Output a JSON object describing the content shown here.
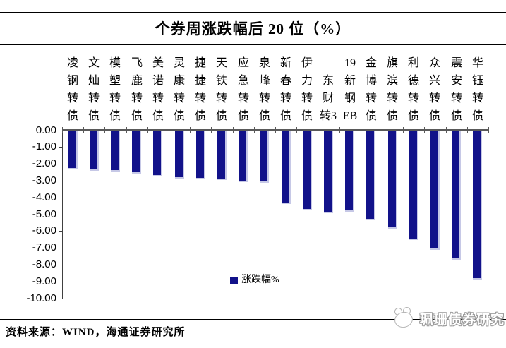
{
  "title": "个券周涨跌幅后 20 位（%）",
  "chart_data": {
    "type": "bar",
    "title": "个券周涨跌幅后 20 位（%）",
    "series_name": "涨跌幅%",
    "categories": [
      "凌钢转债",
      "文灿转债",
      "模塑转债",
      "飞鹿转债",
      "美诺转债",
      "灵康转债",
      "捷捷转债",
      "天铁转债",
      "应急转债",
      "泉峰转债",
      "新春转债",
      "伊力转债",
      "东财转3",
      "19新钢EB",
      "金博转债",
      "旗滨转债",
      "利德转债",
      "众兴转债",
      "震安转债",
      "华钰转债"
    ],
    "category_tokens": [
      [
        "凌",
        "钢",
        "转",
        "债"
      ],
      [
        "文",
        "灿",
        "转",
        "债"
      ],
      [
        "模",
        "塑",
        "转",
        "债"
      ],
      [
        "飞",
        "鹿",
        "转",
        "债"
      ],
      [
        "美",
        "诺",
        "转",
        "债"
      ],
      [
        "灵",
        "康",
        "转",
        "债"
      ],
      [
        "捷",
        "捷",
        "转",
        "债"
      ],
      [
        "天",
        "铁",
        "转",
        "债"
      ],
      [
        "应",
        "急",
        "转",
        "债"
      ],
      [
        "泉",
        "峰",
        "转",
        "债"
      ],
      [
        "新",
        "春",
        "转",
        "债"
      ],
      [
        "伊",
        "力",
        "转",
        "债"
      ],
      [
        "东",
        "财",
        "转3"
      ],
      [
        "19",
        "新",
        "钢",
        "EB"
      ],
      [
        "金",
        "博",
        "转",
        "债"
      ],
      [
        "旗",
        "滨",
        "转",
        "债"
      ],
      [
        "利",
        "德",
        "转",
        "债"
      ],
      [
        "众",
        "兴",
        "转",
        "债"
      ],
      [
        "震",
        "安",
        "转",
        "债"
      ],
      [
        "华",
        "钰",
        "转",
        "债"
      ]
    ],
    "values": [
      -2.3,
      -2.4,
      -2.45,
      -2.55,
      -2.75,
      -2.85,
      -2.9,
      -2.95,
      -3.05,
      -3.1,
      -4.35,
      -4.75,
      -4.9,
      -4.85,
      -5.35,
      -5.85,
      -6.5,
      -7.1,
      -7.7,
      -8.85
    ],
    "ylim": [
      -10,
      0
    ],
    "ytick_step": 1,
    "ytick_labels": [
      "0.00",
      "-1.00",
      "-2.00",
      "-3.00",
      "-4.00",
      "-5.00",
      "-6.00",
      "-7.00",
      "-8.00",
      "-9.00",
      "-10.00"
    ],
    "legend_position": "bottom-center",
    "grid": false,
    "bar_color": "#12128A",
    "bar_edge_color": "#c6c8e6",
    "axis_color": "#595959"
  },
  "legend": {
    "label": "涨跌幅%"
  },
  "source": {
    "text": "资料来源：WIND，海通证券研究所"
  },
  "watermark": {
    "text": "珮珊债券研究",
    "icon": "panda-mascot"
  }
}
